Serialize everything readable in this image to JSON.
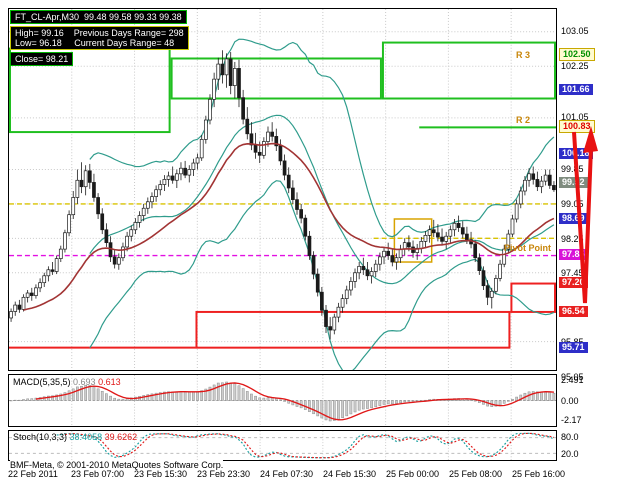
{
  "header": {
    "symbol_line": "FT_CL-Apr,M30  99.48 99.58 99.33 99.38",
    "high_line": "High= 99.16    Previous Days Range= 298",
    "low_line": "Low= 96.18     Current Days Range= 48",
    "close_line": "Close= 98.21"
  },
  "price_scale": {
    "plain": [
      "103.05",
      "102.25",
      "101.05",
      "99.85",
      "99.05",
      "98.25",
      "97.45",
      "95.85",
      "95.05"
    ],
    "highlights": [
      {
        "value": "102.50",
        "bg": "#fffbd0",
        "border": "#c8a800",
        "color": "#009000"
      },
      {
        "value": "101.66",
        "bg": "#2e2ec8",
        "color": "#ffffff"
      },
      {
        "value": "100.83",
        "bg": "#fffbd0",
        "border": "#c8a800",
        "color": "#e00000"
      },
      {
        "value": "100.18",
        "bg": "#2e2ec8",
        "color": "#ffffff"
      },
      {
        "value": "99.52",
        "bg": "#7f8c7f",
        "color": "#ffffff"
      },
      {
        "value": "98.69",
        "bg": "#2e2ec8",
        "color": "#ffffff"
      },
      {
        "value": "97.85",
        "bg": "#d812d8",
        "color": "#ffffff"
      },
      {
        "value": "97.20",
        "bg": "#e82020",
        "color": "#ffffff"
      },
      {
        "value": "96.54",
        "bg": "#e82020",
        "color": "#ffffff"
      },
      {
        "value": "95.71",
        "bg": "#2e2ec8",
        "color": "#ffffff"
      }
    ]
  },
  "annotations": {
    "r3": "R 3",
    "r2": "R 2",
    "pivot": "Pivot Point"
  },
  "footer": {
    "copyright": "BMF-Meta, © 2001-2010 MetaQuotes Software Corp."
  },
  "chart_data": {
    "type": "candlestick",
    "title": "FT_CL-Apr,M30",
    "symbol": "FT_CL-Apr",
    "timeframe": "M30",
    "y_range": [
      95.19,
      103.58
    ],
    "x_labels": [
      "22 Feb 2011",
      "23 Feb 07:00",
      "23 Feb 15:30",
      "23 Feb 23:30",
      "24 Feb 07:30",
      "24 Feb 15:30",
      "25 Feb 00:00",
      "25 Feb 08:00",
      "25 Feb 16:00"
    ],
    "ohlc": [
      [
        96.4,
        96.62,
        96.31,
        96.55
      ],
      [
        96.55,
        96.78,
        96.45,
        96.7
      ],
      [
        96.7,
        96.82,
        96.52,
        96.6
      ],
      [
        96.6,
        96.95,
        96.55,
        96.88
      ],
      [
        96.88,
        97.05,
        96.76,
        96.98
      ],
      [
        96.98,
        97.1,
        96.8,
        96.92
      ],
      [
        96.92,
        97.18,
        96.85,
        97.1
      ],
      [
        97.1,
        97.32,
        97.0,
        97.22
      ],
      [
        97.22,
        97.45,
        97.12,
        97.38
      ],
      [
        97.38,
        97.6,
        97.25,
        97.52
      ],
      [
        97.52,
        97.7,
        97.4,
        97.48
      ],
      [
        97.48,
        97.85,
        97.42,
        97.78
      ],
      [
        97.78,
        98.08,
        97.7,
        98.0
      ],
      [
        98.0,
        98.45,
        97.92,
        98.38
      ],
      [
        98.38,
        98.9,
        98.3,
        98.8
      ],
      [
        98.8,
        99.35,
        98.7,
        99.2
      ],
      [
        99.2,
        99.85,
        99.05,
        99.6
      ],
      [
        99.6,
        100.02,
        99.3,
        99.45
      ],
      [
        99.45,
        99.95,
        99.25,
        99.82
      ],
      [
        99.82,
        99.98,
        99.4,
        99.55
      ],
      [
        99.55,
        99.75,
        99.1,
        99.2
      ],
      [
        99.2,
        99.3,
        98.7,
        98.82
      ],
      [
        98.82,
        98.95,
        98.35,
        98.45
      ],
      [
        98.45,
        98.6,
        98.05,
        98.15
      ],
      [
        98.15,
        98.3,
        97.7,
        97.82
      ],
      [
        97.82,
        98.0,
        97.55,
        97.65
      ],
      [
        97.65,
        97.9,
        97.52,
        97.8
      ],
      [
        97.8,
        98.15,
        97.72,
        98.05
      ],
      [
        98.05,
        98.4,
        97.95,
        98.3
      ],
      [
        98.3,
        98.55,
        98.18,
        98.45
      ],
      [
        98.45,
        98.72,
        98.35,
        98.62
      ],
      [
        98.62,
        98.88,
        98.5,
        98.78
      ],
      [
        98.78,
        99.05,
        98.65,
        98.95
      ],
      [
        98.95,
        99.2,
        98.82,
        99.1
      ],
      [
        99.1,
        99.32,
        98.95,
        99.22
      ],
      [
        99.22,
        99.48,
        99.1,
        99.38
      ],
      [
        99.38,
        99.6,
        99.25,
        99.5
      ],
      [
        99.5,
        99.72,
        99.35,
        99.62
      ],
      [
        99.62,
        99.8,
        99.45,
        99.7
      ],
      [
        99.7,
        99.92,
        99.52,
        99.6
      ],
      [
        99.6,
        99.85,
        99.42,
        99.75
      ],
      [
        99.75,
        100.02,
        99.6,
        99.88
      ],
      [
        99.88,
        100.05,
        99.65,
        99.72
      ],
      [
        99.72,
        99.95,
        99.55,
        99.85
      ],
      [
        99.85,
        100.1,
        99.7,
        100.0
      ],
      [
        100.0,
        100.22,
        99.85,
        100.12
      ],
      [
        100.12,
        100.65,
        100.05,
        100.55
      ],
      [
        100.55,
        101.1,
        100.45,
        101.0
      ],
      [
        101.0,
        101.6,
        100.9,
        101.48
      ],
      [
        101.48,
        102.1,
        101.3,
        101.95
      ],
      [
        101.95,
        102.45,
        101.7,
        102.3
      ],
      [
        102.3,
        102.62,
        101.85,
        102.05
      ],
      [
        102.05,
        102.55,
        101.75,
        102.42
      ],
      [
        102.42,
        102.58,
        101.6,
        101.8
      ],
      [
        101.8,
        102.35,
        101.5,
        102.2
      ],
      [
        102.2,
        102.4,
        101.3,
        101.52
      ],
      [
        101.52,
        101.7,
        100.9,
        101.02
      ],
      [
        101.02,
        101.3,
        100.55,
        100.68
      ],
      [
        100.68,
        100.95,
        100.3,
        100.42
      ],
      [
        100.42,
        100.7,
        100.1,
        100.25
      ],
      [
        100.25,
        100.5,
        100.0,
        100.18
      ],
      [
        100.18,
        100.6,
        100.1,
        100.5
      ],
      [
        100.5,
        100.85,
        100.38,
        100.72
      ],
      [
        100.72,
        100.95,
        100.5,
        100.62
      ],
      [
        100.62,
        100.8,
        100.28,
        100.4
      ],
      [
        100.4,
        100.55,
        99.95,
        100.05
      ],
      [
        100.05,
        100.2,
        99.6,
        99.72
      ],
      [
        99.72,
        99.9,
        99.3,
        99.42
      ],
      [
        99.42,
        99.6,
        99.05,
        99.15
      ],
      [
        99.15,
        99.32,
        98.8,
        98.92
      ],
      [
        98.92,
        99.05,
        98.6,
        98.72
      ],
      [
        98.72,
        98.8,
        98.2,
        98.3
      ],
      [
        98.3,
        98.42,
        97.75,
        97.85
      ],
      [
        97.85,
        97.95,
        97.3,
        97.42
      ],
      [
        97.42,
        97.55,
        96.9,
        97.0
      ],
      [
        97.0,
        97.12,
        96.45,
        96.58
      ],
      [
        96.58,
        96.7,
        96.05,
        96.2
      ],
      [
        96.2,
        96.42,
        95.9,
        96.12
      ],
      [
        96.12,
        96.5,
        96.02,
        96.42
      ],
      [
        96.42,
        96.75,
        96.3,
        96.65
      ],
      [
        96.65,
        96.95,
        96.52,
        96.85
      ],
      [
        96.85,
        97.15,
        96.72,
        97.05
      ],
      [
        97.05,
        97.35,
        96.92,
        97.25
      ],
      [
        97.25,
        97.55,
        97.1,
        97.45
      ],
      [
        97.45,
        97.7,
        97.3,
        97.6
      ],
      [
        97.6,
        97.8,
        97.4,
        97.52
      ],
      [
        97.52,
        97.7,
        97.28,
        97.38
      ],
      [
        97.38,
        97.58,
        97.2,
        97.48
      ],
      [
        97.48,
        97.75,
        97.35,
        97.65
      ],
      [
        97.65,
        97.92,
        97.5,
        97.82
      ],
      [
        97.82,
        98.05,
        97.65,
        97.95
      ],
      [
        97.95,
        98.15,
        97.75,
        97.85
      ],
      [
        97.85,
        98.0,
        97.6,
        97.7
      ],
      [
        97.7,
        97.9,
        97.52,
        97.8
      ],
      [
        97.8,
        98.1,
        97.68,
        98.0
      ],
      [
        98.0,
        98.25,
        97.85,
        98.15
      ],
      [
        98.15,
        98.32,
        97.95,
        98.05
      ],
      [
        98.05,
        98.2,
        97.8,
        97.92
      ],
      [
        97.92,
        98.12,
        97.75,
        98.02
      ],
      [
        98.02,
        98.28,
        97.9,
        98.18
      ],
      [
        98.18,
        98.42,
        98.05,
        98.32
      ],
      [
        98.32,
        98.55,
        98.15,
        98.45
      ],
      [
        98.45,
        98.68,
        98.28,
        98.38
      ],
      [
        98.38,
        98.58,
        98.18,
        98.28
      ],
      [
        98.28,
        98.48,
        98.08,
        98.18
      ],
      [
        98.18,
        98.4,
        98.0,
        98.3
      ],
      [
        98.3,
        98.55,
        98.15,
        98.45
      ],
      [
        98.45,
        98.7,
        98.3,
        98.6
      ],
      [
        98.6,
        98.78,
        98.4,
        98.5
      ],
      [
        98.5,
        98.65,
        98.25,
        98.35
      ],
      [
        98.35,
        98.52,
        98.12,
        98.22
      ],
      [
        98.22,
        98.4,
        98.02,
        98.12
      ],
      [
        98.12,
        98.2,
        97.7,
        97.8
      ],
      [
        97.8,
        97.9,
        97.4,
        97.5
      ],
      [
        97.5,
        97.6,
        97.05,
        97.15
      ],
      [
        97.15,
        97.28,
        96.7,
        96.88
      ],
      [
        96.88,
        97.1,
        96.62,
        97.02
      ],
      [
        97.02,
        97.4,
        96.95,
        97.32
      ],
      [
        97.32,
        97.75,
        97.25,
        97.65
      ],
      [
        97.65,
        98.1,
        97.58,
        98.0
      ],
      [
        98.0,
        98.45,
        97.92,
        98.35
      ],
      [
        98.35,
        98.8,
        98.28,
        98.7
      ],
      [
        98.7,
        99.15,
        98.62,
        99.05
      ],
      [
        99.05,
        99.45,
        98.95,
        99.35
      ],
      [
        99.35,
        99.7,
        99.25,
        99.6
      ],
      [
        99.6,
        99.88,
        99.45,
        99.75
      ],
      [
        99.75,
        99.92,
        99.5,
        99.62
      ],
      [
        99.62,
        99.8,
        99.35,
        99.45
      ],
      [
        99.45,
        99.7,
        99.3,
        99.58
      ],
      [
        99.58,
        99.85,
        99.48,
        99.72
      ],
      [
        99.72,
        99.85,
        99.4,
        99.48
      ],
      [
        99.48,
        99.58,
        99.33,
        99.38
      ]
    ],
    "overlays": {
      "green_boxes": [
        {
          "i0": 0,
          "i1": 39,
          "p0": 100.72,
          "p1": 102.66
        },
        {
          "i0": 39,
          "i1": 90,
          "p0": 101.5,
          "p1": 102.43
        },
        {
          "i0": 90,
          "i1": 132,
          "p0": 101.5,
          "p1": 102.8
        }
      ],
      "green_lines": [
        {
          "i0": 99,
          "i1": 132,
          "p": 100.83
        }
      ],
      "red_lines": [
        {
          "i0": 0,
          "i1": 45,
          "p": 95.71
        }
      ],
      "red_boxes": [
        {
          "i0": 45,
          "i1": 121,
          "p0": 95.71,
          "p1": 96.54
        },
        {
          "i0": 121,
          "i1": 132,
          "p0": 96.54,
          "p1": 97.2
        }
      ],
      "yellow_dashed": [
        {
          "i0": 0,
          "i1": 132,
          "p": 99.05
        },
        {
          "i0": 88,
          "i1": 132,
          "p": 98.25
        }
      ],
      "magenta_dashed": [
        {
          "i0": 0,
          "i1": 132,
          "p": 97.85
        }
      ],
      "gold_boxes": [
        {
          "i0": 93,
          "i1": 102,
          "p0": 97.7,
          "p1": 98.7
        }
      ]
    },
    "macd": {
      "label": "MACD(5,35,5)",
      "values": [
        "0.693",
        "0.613"
      ],
      "scale": [
        "2.491",
        "0.00",
        "-2.17"
      ]
    },
    "stoch": {
      "label": "Stoch(10,3,3)",
      "values": [
        "38.4058",
        "39.6262"
      ],
      "scale": [
        "80.0",
        "20.0"
      ]
    }
  }
}
